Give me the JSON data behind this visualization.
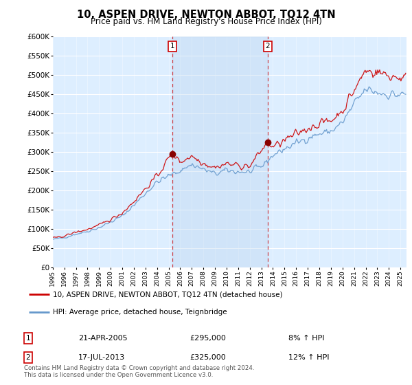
{
  "title": "10, ASPEN DRIVE, NEWTON ABBOT, TQ12 4TN",
  "subtitle": "Price paid vs. HM Land Registry's House Price Index (HPI)",
  "ylim": [
    0,
    600000
  ],
  "yticks": [
    0,
    50000,
    100000,
    150000,
    200000,
    250000,
    300000,
    350000,
    400000,
    450000,
    500000,
    550000,
    600000
  ],
  "ytick_labels": [
    "£0",
    "£50K",
    "£100K",
    "£150K",
    "£200K",
    "£250K",
    "£300K",
    "£350K",
    "£400K",
    "£450K",
    "£500K",
    "£550K",
    "£600K"
  ],
  "xlim_start": 1995.0,
  "xlim_end": 2025.5,
  "line_color_price": "#cc0000",
  "line_color_hpi": "#6699cc",
  "purchase1_year": 2005.3,
  "purchase1_price": 295000,
  "purchase2_year": 2013.54,
  "purchase2_price": 325000,
  "shade_color": "#cce0f0",
  "legend_line1": "10, ASPEN DRIVE, NEWTON ABBOT, TQ12 4TN (detached house)",
  "legend_line2": "HPI: Average price, detached house, Teignbridge",
  "date1": "21-APR-2005",
  "amount1": "£295,000",
  "pct1": "8% ↑ HPI",
  "date2": "17-JUL-2013",
  "amount2": "£325,000",
  "pct2": "12% ↑ HPI",
  "footnote": "Contains HM Land Registry data © Crown copyright and database right 2024.\nThis data is licensed under the Open Government Licence v3.0.",
  "bg_color": "#ddeeff",
  "marker_box_color": "#cc0000"
}
